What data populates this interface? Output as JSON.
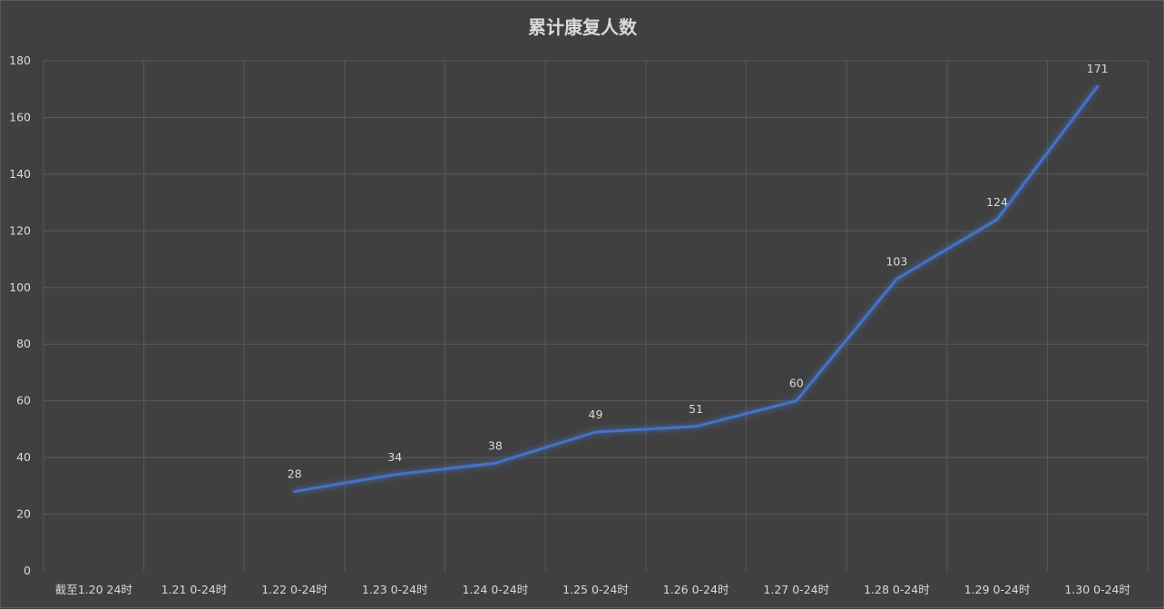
{
  "chart_data": {
    "type": "line",
    "title": "累计康复人数",
    "categories": [
      "截至1.20 24时",
      "1.21 0-24时",
      "1.22 0-24时",
      "1.23 0-24时",
      "1.24 0-24时",
      "1.25 0-24时",
      "1.26 0-24时",
      "1.27 0-24时",
      "1.28 0-24时",
      "1.29 0-24时",
      "1.30 0-24时"
    ],
    "series": [
      {
        "values": [
          null,
          null,
          28,
          34,
          38,
          49,
          51,
          60,
          103,
          124,
          171
        ],
        "data_labels": [
          "",
          "",
          "28",
          "34",
          "38",
          "49",
          "51",
          "60",
          "103",
          "124",
          "171"
        ],
        "color": "#4472c4"
      }
    ],
    "ylim": [
      0,
      180
    ],
    "yticks": [
      "0",
      "20",
      "40",
      "60",
      "80",
      "100",
      "120",
      "140",
      "160",
      "180"
    ],
    "grid": true,
    "legend": "none",
    "background_color": "#404040",
    "text_color": "#d9d9d9",
    "grid_color": "#595959"
  }
}
